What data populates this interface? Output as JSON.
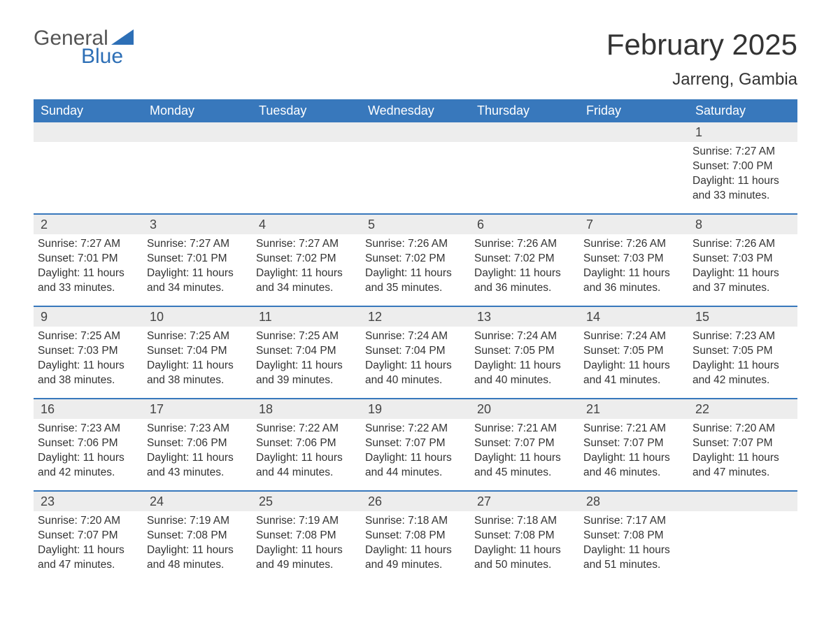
{
  "logo": {
    "top": "General",
    "bottom": "Blue"
  },
  "title": "February 2025",
  "location": "Jarreng, Gambia",
  "colors": {
    "header_bg": "#3878bc",
    "header_text": "#ffffff",
    "row_divider": "#3878bc",
    "daynum_bg": "#ededed",
    "text": "#333333"
  },
  "day_labels": [
    "Sunday",
    "Monday",
    "Tuesday",
    "Wednesday",
    "Thursday",
    "Friday",
    "Saturday"
  ],
  "weeks": [
    [
      {
        "n": "",
        "sr": "",
        "ss": "",
        "dl": ""
      },
      {
        "n": "",
        "sr": "",
        "ss": "",
        "dl": ""
      },
      {
        "n": "",
        "sr": "",
        "ss": "",
        "dl": ""
      },
      {
        "n": "",
        "sr": "",
        "ss": "",
        "dl": ""
      },
      {
        "n": "",
        "sr": "",
        "ss": "",
        "dl": ""
      },
      {
        "n": "",
        "sr": "",
        "ss": "",
        "dl": ""
      },
      {
        "n": "1",
        "sr": "Sunrise: 7:27 AM",
        "ss": "Sunset: 7:00 PM",
        "dl": "Daylight: 11 hours and 33 minutes."
      }
    ],
    [
      {
        "n": "2",
        "sr": "Sunrise: 7:27 AM",
        "ss": "Sunset: 7:01 PM",
        "dl": "Daylight: 11 hours and 33 minutes."
      },
      {
        "n": "3",
        "sr": "Sunrise: 7:27 AM",
        "ss": "Sunset: 7:01 PM",
        "dl": "Daylight: 11 hours and 34 minutes."
      },
      {
        "n": "4",
        "sr": "Sunrise: 7:27 AM",
        "ss": "Sunset: 7:02 PM",
        "dl": "Daylight: 11 hours and 34 minutes."
      },
      {
        "n": "5",
        "sr": "Sunrise: 7:26 AM",
        "ss": "Sunset: 7:02 PM",
        "dl": "Daylight: 11 hours and 35 minutes."
      },
      {
        "n": "6",
        "sr": "Sunrise: 7:26 AM",
        "ss": "Sunset: 7:02 PM",
        "dl": "Daylight: 11 hours and 36 minutes."
      },
      {
        "n": "7",
        "sr": "Sunrise: 7:26 AM",
        "ss": "Sunset: 7:03 PM",
        "dl": "Daylight: 11 hours and 36 minutes."
      },
      {
        "n": "8",
        "sr": "Sunrise: 7:26 AM",
        "ss": "Sunset: 7:03 PM",
        "dl": "Daylight: 11 hours and 37 minutes."
      }
    ],
    [
      {
        "n": "9",
        "sr": "Sunrise: 7:25 AM",
        "ss": "Sunset: 7:03 PM",
        "dl": "Daylight: 11 hours and 38 minutes."
      },
      {
        "n": "10",
        "sr": "Sunrise: 7:25 AM",
        "ss": "Sunset: 7:04 PM",
        "dl": "Daylight: 11 hours and 38 minutes."
      },
      {
        "n": "11",
        "sr": "Sunrise: 7:25 AM",
        "ss": "Sunset: 7:04 PM",
        "dl": "Daylight: 11 hours and 39 minutes."
      },
      {
        "n": "12",
        "sr": "Sunrise: 7:24 AM",
        "ss": "Sunset: 7:04 PM",
        "dl": "Daylight: 11 hours and 40 minutes."
      },
      {
        "n": "13",
        "sr": "Sunrise: 7:24 AM",
        "ss": "Sunset: 7:05 PM",
        "dl": "Daylight: 11 hours and 40 minutes."
      },
      {
        "n": "14",
        "sr": "Sunrise: 7:24 AM",
        "ss": "Sunset: 7:05 PM",
        "dl": "Daylight: 11 hours and 41 minutes."
      },
      {
        "n": "15",
        "sr": "Sunrise: 7:23 AM",
        "ss": "Sunset: 7:05 PM",
        "dl": "Daylight: 11 hours and 42 minutes."
      }
    ],
    [
      {
        "n": "16",
        "sr": "Sunrise: 7:23 AM",
        "ss": "Sunset: 7:06 PM",
        "dl": "Daylight: 11 hours and 42 minutes."
      },
      {
        "n": "17",
        "sr": "Sunrise: 7:23 AM",
        "ss": "Sunset: 7:06 PM",
        "dl": "Daylight: 11 hours and 43 minutes."
      },
      {
        "n": "18",
        "sr": "Sunrise: 7:22 AM",
        "ss": "Sunset: 7:06 PM",
        "dl": "Daylight: 11 hours and 44 minutes."
      },
      {
        "n": "19",
        "sr": "Sunrise: 7:22 AM",
        "ss": "Sunset: 7:07 PM",
        "dl": "Daylight: 11 hours and 44 minutes."
      },
      {
        "n": "20",
        "sr": "Sunrise: 7:21 AM",
        "ss": "Sunset: 7:07 PM",
        "dl": "Daylight: 11 hours and 45 minutes."
      },
      {
        "n": "21",
        "sr": "Sunrise: 7:21 AM",
        "ss": "Sunset: 7:07 PM",
        "dl": "Daylight: 11 hours and 46 minutes."
      },
      {
        "n": "22",
        "sr": "Sunrise: 7:20 AM",
        "ss": "Sunset: 7:07 PM",
        "dl": "Daylight: 11 hours and 47 minutes."
      }
    ],
    [
      {
        "n": "23",
        "sr": "Sunrise: 7:20 AM",
        "ss": "Sunset: 7:07 PM",
        "dl": "Daylight: 11 hours and 47 minutes."
      },
      {
        "n": "24",
        "sr": "Sunrise: 7:19 AM",
        "ss": "Sunset: 7:08 PM",
        "dl": "Daylight: 11 hours and 48 minutes."
      },
      {
        "n": "25",
        "sr": "Sunrise: 7:19 AM",
        "ss": "Sunset: 7:08 PM",
        "dl": "Daylight: 11 hours and 49 minutes."
      },
      {
        "n": "26",
        "sr": "Sunrise: 7:18 AM",
        "ss": "Sunset: 7:08 PM",
        "dl": "Daylight: 11 hours and 49 minutes."
      },
      {
        "n": "27",
        "sr": "Sunrise: 7:18 AM",
        "ss": "Sunset: 7:08 PM",
        "dl": "Daylight: 11 hours and 50 minutes."
      },
      {
        "n": "28",
        "sr": "Sunrise: 7:17 AM",
        "ss": "Sunset: 7:08 PM",
        "dl": "Daylight: 11 hours and 51 minutes."
      },
      {
        "n": "",
        "sr": "",
        "ss": "",
        "dl": ""
      }
    ]
  ]
}
